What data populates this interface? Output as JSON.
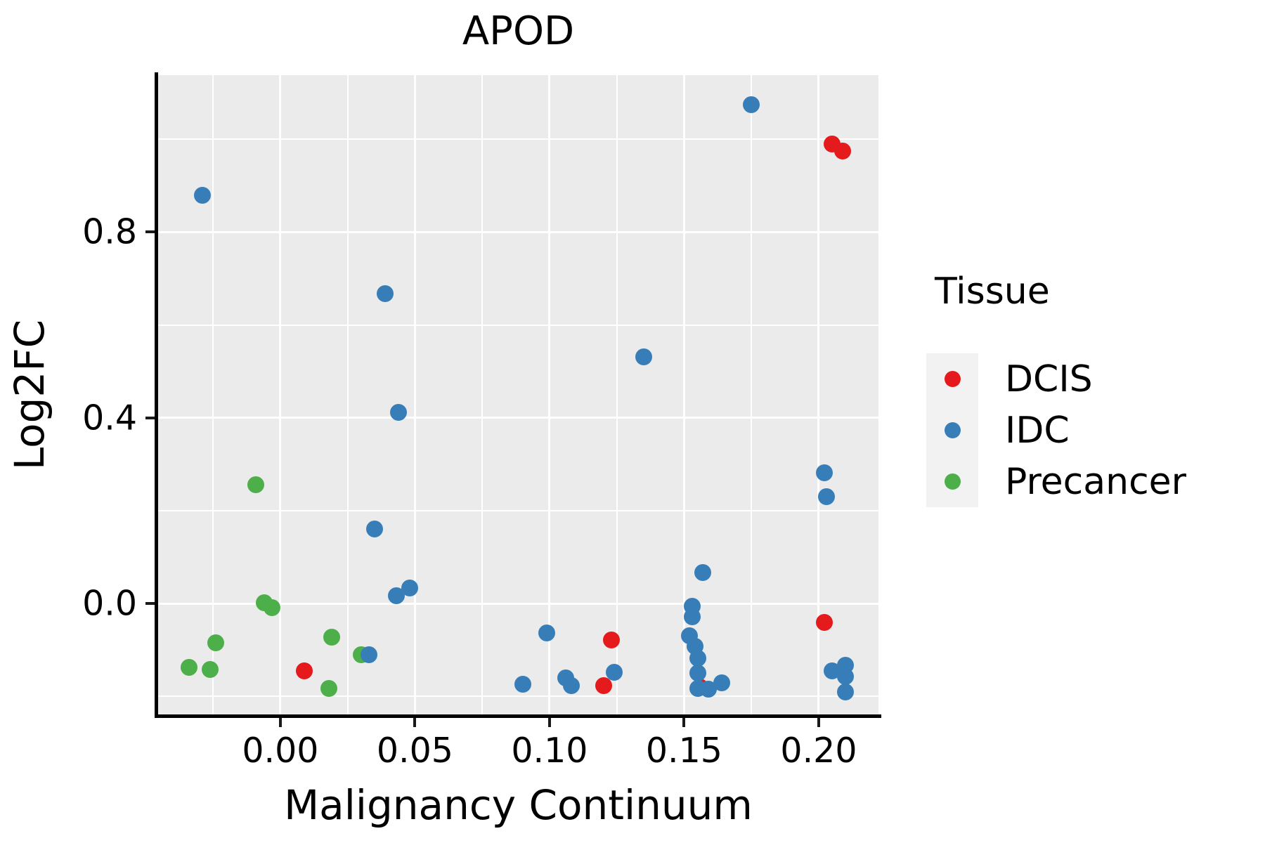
{
  "chart_data": {
    "type": "scatter",
    "title": "APOD",
    "xlabel": "Malignancy Continuum",
    "ylabel": "Log2FC",
    "x_domain": [
      -0.0454,
      0.2222
    ],
    "y_domain": [
      -0.239,
      1.138
    ],
    "x_ticks": {
      "values": [
        0.0,
        0.05,
        0.1,
        0.15,
        0.2
      ],
      "labels": [
        "0.00",
        "0.05",
        "0.10",
        "0.15",
        "0.20"
      ]
    },
    "y_ticks": {
      "values": [
        0.0,
        0.4,
        0.8
      ],
      "labels": [
        "0.0",
        "0.4",
        "0.8"
      ]
    },
    "x_minor": [
      -0.025,
      0.025,
      0.075,
      0.125,
      0.175
    ],
    "y_minor": [
      -0.2,
      0.2,
      0.6,
      1.0
    ],
    "grid": true,
    "panel_background": "#ebebeb",
    "grid_color": "#ffffff",
    "legend": {
      "title": "Tissue",
      "position": "right",
      "entries": [
        {
          "label": "DCIS",
          "color": "#e41a1c"
        },
        {
          "label": "IDC",
          "color": "#377eb8"
        },
        {
          "label": "Precancer",
          "color": "#4daf4a"
        }
      ]
    },
    "series": [
      {
        "name": "DCIS",
        "color": "#e41a1c",
        "points": [
          [
            0.205,
            0.989
          ],
          [
            0.209,
            0.974
          ],
          [
            0.202,
            -0.041
          ],
          [
            0.123,
            -0.079
          ],
          [
            0.009,
            -0.145
          ],
          [
            0.12,
            -0.177
          ],
          [
            0.156,
            -0.18
          ]
        ]
      },
      {
        "name": "Precancer",
        "color": "#4daf4a",
        "points": [
          [
            -0.009,
            0.256
          ],
          [
            -0.006,
            0.001
          ],
          [
            -0.003,
            -0.009
          ],
          [
            -0.024,
            -0.085
          ],
          [
            0.019,
            -0.073
          ],
          [
            0.03,
            -0.11
          ],
          [
            -0.034,
            -0.138
          ],
          [
            -0.026,
            -0.142
          ],
          [
            0.018,
            -0.183
          ]
        ]
      },
      {
        "name": "IDC",
        "color": "#377eb8",
        "points": [
          [
            -0.029,
            0.879
          ],
          [
            0.175,
            1.074
          ],
          [
            0.039,
            0.667
          ],
          [
            0.135,
            0.531
          ],
          [
            0.044,
            0.412
          ],
          [
            0.202,
            0.281
          ],
          [
            0.203,
            0.23
          ],
          [
            0.035,
            0.16
          ],
          [
            0.157,
            0.067
          ],
          [
            0.048,
            0.033
          ],
          [
            0.043,
            0.017
          ],
          [
            0.153,
            -0.006
          ],
          [
            0.153,
            -0.029
          ],
          [
            0.099,
            -0.063
          ],
          [
            0.152,
            -0.07
          ],
          [
            0.154,
            -0.092
          ],
          [
            0.033,
            -0.11
          ],
          [
            0.155,
            -0.118
          ],
          [
            0.21,
            -0.133
          ],
          [
            0.205,
            -0.145
          ],
          [
            0.124,
            -0.148
          ],
          [
            0.155,
            -0.15
          ],
          [
            0.21,
            -0.157
          ],
          [
            0.106,
            -0.16
          ],
          [
            0.164,
            -0.171
          ],
          [
            0.09,
            -0.174
          ],
          [
            0.108,
            -0.177
          ],
          [
            0.155,
            -0.183
          ],
          [
            0.159,
            -0.185
          ],
          [
            0.21,
            -0.191
          ]
        ]
      }
    ]
  }
}
